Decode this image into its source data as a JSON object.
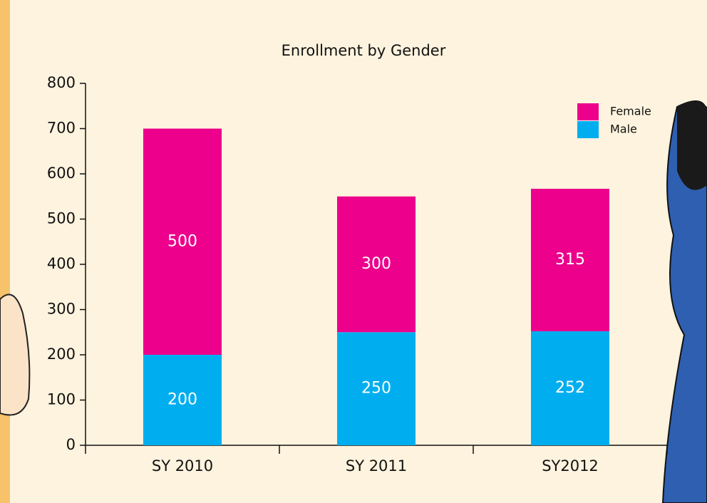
{
  "chart_data": {
    "type": "stacked_bar",
    "title": "Enrollment by Gender",
    "categories": [
      "SY 2010",
      "SY 2011",
      "SY2012"
    ],
    "series": [
      {
        "name": "Male",
        "color": "#00aeef",
        "values": [
          200,
          250,
          252
        ]
      },
      {
        "name": "Female",
        "color": "#ec008c",
        "values": [
          500,
          300,
          315
        ]
      }
    ],
    "ylim": [
      0,
      800
    ],
    "yticks": [
      0,
      100,
      200,
      300,
      400,
      500,
      600,
      700,
      800
    ],
    "legend": "top-right",
    "data_labels": true
  }
}
